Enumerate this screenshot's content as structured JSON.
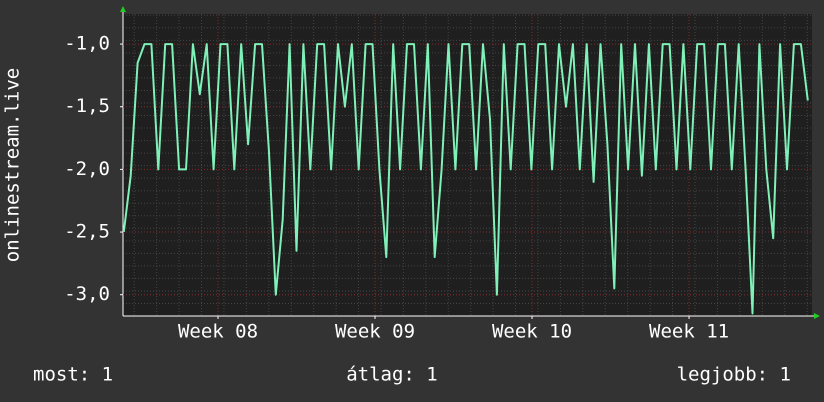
{
  "chart_data": {
    "type": "line",
    "y_label": "onlinestream.live",
    "x": [
      7.4,
      7.444,
      7.488,
      7.532,
      7.576,
      7.62,
      7.664,
      7.708,
      7.752,
      7.796,
      7.84,
      7.884,
      7.928,
      7.972,
      8.016,
      8.06,
      8.104,
      8.148,
      8.192,
      8.236,
      8.28,
      8.324,
      8.368,
      8.412,
      8.456,
      8.5,
      8.544,
      8.588,
      8.632,
      8.676,
      8.72,
      8.764,
      8.808,
      8.852,
      8.896,
      8.94,
      8.984,
      9.028,
      9.072,
      9.116,
      9.16,
      9.204,
      9.248,
      9.292,
      9.336,
      9.38,
      9.424,
      9.468,
      9.512,
      9.556,
      9.6,
      9.644,
      9.688,
      9.732,
      9.776,
      9.82,
      9.864,
      9.908,
      9.952,
      9.996,
      10.04,
      10.084,
      10.128,
      10.172,
      10.216,
      10.26,
      10.304,
      10.348,
      10.392,
      10.436,
      10.48,
      10.524,
      10.568,
      10.612,
      10.656,
      10.7,
      10.744,
      10.788,
      10.832,
      10.876,
      10.92,
      10.964,
      11.008,
      11.052,
      11.096,
      11.14,
      11.184,
      11.228,
      11.272,
      11.316,
      11.36,
      11.404,
      11.448,
      11.492,
      11.536,
      11.58,
      11.624,
      11.668,
      11.712,
      11.756
    ],
    "series": [
      {
        "color": "#7ff0b8",
        "values": [
          -2.5,
          -2.05,
          -1.15,
          -1.0,
          -1.0,
          -2.0,
          -1.0,
          -1.0,
          -2.0,
          -2.0,
          -1.0,
          -1.4,
          -1.0,
          -2.0,
          -1.0,
          -1.0,
          -2.0,
          -1.0,
          -1.8,
          -1.0,
          -1.0,
          -1.85,
          -3.0,
          -2.4,
          -1.0,
          -2.65,
          -1.0,
          -2.0,
          -1.0,
          -1.0,
          -2.0,
          -1.0,
          -1.5,
          -1.0,
          -2.0,
          -1.0,
          -1.0,
          -2.0,
          -2.7,
          -1.0,
          -2.0,
          -1.0,
          -1.0,
          -2.0,
          -1.0,
          -2.7,
          -2.0,
          -1.0,
          -2.0,
          -1.0,
          -1.0,
          -2.0,
          -1.0,
          -1.6,
          -3.0,
          -1.0,
          -2.0,
          -1.0,
          -1.0,
          -2.0,
          -1.0,
          -1.0,
          -2.0,
          -1.0,
          -1.5,
          -1.0,
          -2.0,
          -1.0,
          -2.1,
          -1.0,
          -1.8,
          -2.95,
          -1.0,
          -2.0,
          -1.0,
          -2.05,
          -1.0,
          -2.0,
          -1.0,
          -1.0,
          -2.0,
          -1.0,
          -2.0,
          -1.0,
          -1.0,
          -2.0,
          -1.0,
          -1.0,
          -2.0,
          -1.0,
          -2.0,
          -3.15,
          -1.0,
          -2.0,
          -2.55,
          -1.0,
          -2.0,
          -1.0,
          -1.0,
          -1.45
        ]
      }
    ],
    "xlim": [
      7.395,
      11.783
    ],
    "xticks": [
      {
        "value": 8,
        "label": "Week 08"
      },
      {
        "value": 9,
        "label": "Week 09"
      },
      {
        "value": 10,
        "label": "Week 10"
      },
      {
        "value": 11,
        "label": "Week 11"
      }
    ],
    "ylim": [
      -3.17,
      -0.76
    ],
    "yticks": [
      {
        "value": -1,
        "label": "-1,0"
      },
      {
        "value": -1.5,
        "label": "-1,5"
      },
      {
        "value": -2,
        "label": "-2,0"
      },
      {
        "value": -2.5,
        "label": "-2,5"
      },
      {
        "value": -3,
        "label": "-3,0"
      }
    ],
    "grid": true,
    "legend": [
      "most: 1",
      "átlag: 1",
      "legjobb: 1"
    ]
  }
}
